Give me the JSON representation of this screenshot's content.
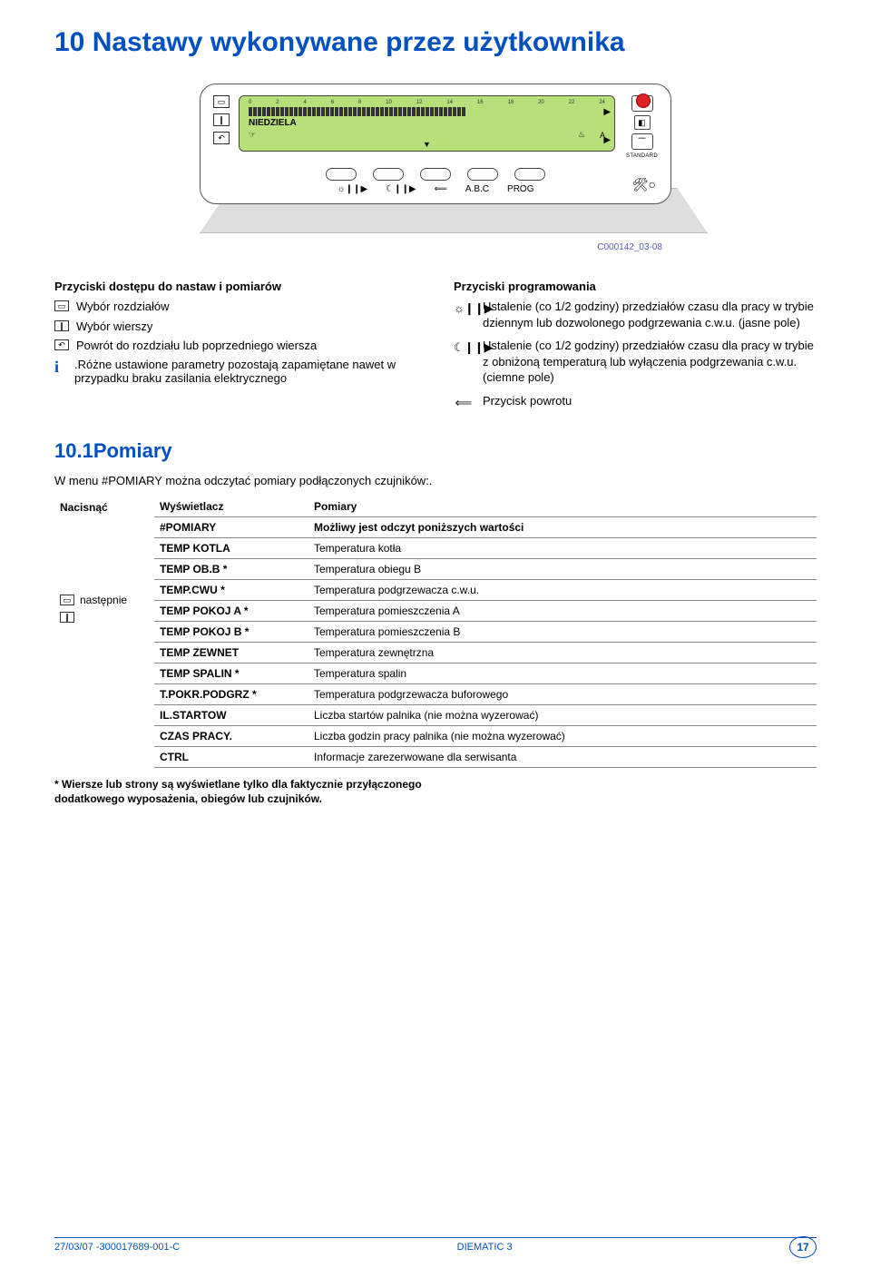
{
  "colors": {
    "heading": "#0050c0",
    "lcd_bg": "#b7df7a",
    "red_dot": "#d22222",
    "table_border": "#888888",
    "footnote_border": "#0050c0"
  },
  "title": "10 Nastawy wykonywane przez użytkownika",
  "device": {
    "scale_ticks": [
      "0",
      "2",
      "4",
      "6",
      "8",
      "10",
      "12",
      "14",
      "16",
      "18",
      "20",
      "22",
      "24"
    ],
    "lcd_day": "NIEDZIELA",
    "lcd_sym1": "☞",
    "lcd_sym2": "♨",
    "lcd_sym3": "A",
    "standard_label": "STANDARD",
    "bottom_labels": [
      "☼❙❙▶",
      "☾❙❙▶",
      "⟸",
      "A.B.C",
      "PROG"
    ],
    "image_code": "C000142_03-08"
  },
  "left_block": {
    "heading": "Przyciski dostępu do nastaw i pomiarów",
    "items": [
      "Wybór rozdziałów",
      "Wybór wierszy",
      "Powrót do rozdziału lub poprzedniego wiersza"
    ],
    "note": ".Różne ustawione parametry pozostają zapamiętane nawet w przypadku braku zasilania elektrycznego"
  },
  "right_block": {
    "heading": "Przyciski programowania",
    "items": [
      {
        "icon": "☼❙❙▶",
        "text": "Ustalenie (co 1/2 godziny) przedziałów czasu dla pracy w trybie dziennym lub dozwolonego podgrzewania c.w.u. (jasne pole)"
      },
      {
        "icon": "☾❙❙▶",
        "text": "Ustalenie (co 1/2 godziny) przedziałów czasu dla pracy w trybie z obniżoną temperaturą lub wyłączenia podgrzewania c.w.u. (ciemne pole)"
      },
      {
        "icon": "⟸",
        "text": "Przycisk powrotu"
      }
    ]
  },
  "section_heading": "10.1Pomiary",
  "intro": "W menu #POMIARY można odczytać pomiary podłączonych czujników:.",
  "table": {
    "headers": [
      "Nacisnąć",
      "Wyświetlacz",
      "Pomiary"
    ],
    "col1_label": "następnie",
    "rows": [
      [
        "#POMIARY",
        "Możliwy jest odczyt poniższych wartości"
      ],
      [
        "TEMP KOTLA",
        "Temperatura kotła"
      ],
      [
        "TEMP OB.B *",
        "Temperatura obiegu B"
      ],
      [
        "TEMP.CWU *",
        "Temperatura podgrzewacza c.w.u."
      ],
      [
        "TEMP POKOJ A *",
        "Temperatura pomieszczenia A"
      ],
      [
        "TEMP POKOJ B *",
        "Temperatura pomieszczenia B"
      ],
      [
        "TEMP ZEWNET",
        "Temperatura zewnętrzna"
      ],
      [
        "TEMP SPALIN *",
        "Temperatura spalin"
      ],
      [
        "T.POKR.PODGRZ *",
        "Temperatura podgrzewacza buforowego"
      ],
      [
        "IL.STARTOW",
        "Liczba startów palnika (nie można wyzerować)"
      ],
      [
        "CZAS PRACY.",
        "Liczba godzin pracy palnika (nie można wyzerować)"
      ],
      [
        "CTRL",
        "Informacje zarezerwowane dla serwisanta"
      ]
    ]
  },
  "footnote": "* Wiersze lub strony są wyświetlane tylko dla faktycznie przyłączonego dodatkowego wyposażenia, obiegów lub czujników.",
  "footer": {
    "left": "27/03/07 -300017689-001-C",
    "center": "DIEMATIC 3",
    "page": "17"
  }
}
